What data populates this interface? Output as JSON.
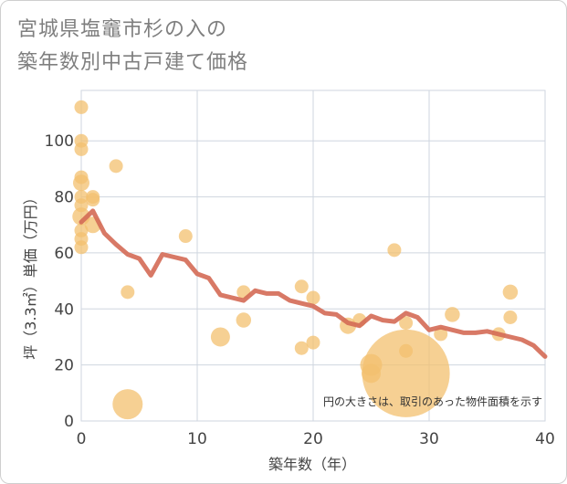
{
  "title_lines": [
    "宮城県塩竈市杉の入の",
    "築年数別中古戸建て価格"
  ],
  "chart_data": {
    "type": "scatter",
    "xlabel": "築年数（年）",
    "ylabel": "坪（3.3㎡）単価（万円）",
    "xlim": [
      0,
      40
    ],
    "ylim": [
      0,
      118
    ],
    "xticks": [
      0,
      10,
      20,
      30,
      40
    ],
    "yticks": [
      0,
      20,
      40,
      60,
      80,
      100
    ],
    "grid": true,
    "note": "円の大きさは、取引のあった物件面積を示す",
    "colors": {
      "bubble": "#f3c06f",
      "trend": "#d46a55",
      "grid": "#cfd6df"
    },
    "points": [
      {
        "x": 0,
        "y": 112,
        "size": 1
      },
      {
        "x": 0,
        "y": 100,
        "size": 1
      },
      {
        "x": 0,
        "y": 97,
        "size": 1
      },
      {
        "x": 0,
        "y": 87,
        "size": 1
      },
      {
        "x": 0,
        "y": 85,
        "size": 1.2
      },
      {
        "x": 0,
        "y": 80,
        "size": 1
      },
      {
        "x": 0,
        "y": 77,
        "size": 1
      },
      {
        "x": 0,
        "y": 73,
        "size": 1.3
      },
      {
        "x": 0,
        "y": 68,
        "size": 1
      },
      {
        "x": 0,
        "y": 65,
        "size": 1
      },
      {
        "x": 0,
        "y": 62,
        "size": 1
      },
      {
        "x": 1,
        "y": 80,
        "size": 1
      },
      {
        "x": 1,
        "y": 79,
        "size": 1
      },
      {
        "x": 1,
        "y": 70,
        "size": 1.2
      },
      {
        "x": 3,
        "y": 91,
        "size": 1
      },
      {
        "x": 4,
        "y": 46,
        "size": 1
      },
      {
        "x": 4,
        "y": 6,
        "size": 2.2
      },
      {
        "x": 9,
        "y": 66,
        "size": 1
      },
      {
        "x": 12,
        "y": 30,
        "size": 1.4
      },
      {
        "x": 14,
        "y": 46,
        "size": 1
      },
      {
        "x": 14,
        "y": 36,
        "size": 1.1
      },
      {
        "x": 19,
        "y": 48,
        "size": 1
      },
      {
        "x": 19,
        "y": 26,
        "size": 1
      },
      {
        "x": 20,
        "y": 44,
        "size": 1
      },
      {
        "x": 20,
        "y": 28,
        "size": 1
      },
      {
        "x": 23,
        "y": 34,
        "size": 1.2
      },
      {
        "x": 24,
        "y": 36,
        "size": 1
      },
      {
        "x": 25,
        "y": 20,
        "size": 1.6
      },
      {
        "x": 25,
        "y": 17,
        "size": 1.4
      },
      {
        "x": 27,
        "y": 61,
        "size": 1
      },
      {
        "x": 28,
        "y": 35,
        "size": 1
      },
      {
        "x": 28,
        "y": 25,
        "size": 1
      },
      {
        "x": 28,
        "y": 17,
        "size": 6.4
      },
      {
        "x": 31,
        "y": 31,
        "size": 1
      },
      {
        "x": 32,
        "y": 38,
        "size": 1.1
      },
      {
        "x": 36,
        "y": 31,
        "size": 1
      },
      {
        "x": 37,
        "y": 46,
        "size": 1.1
      },
      {
        "x": 37,
        "y": 37,
        "size": 1
      }
    ],
    "trend": {
      "x": [
        0,
        1,
        2,
        3,
        4,
        5,
        6,
        7,
        8,
        9,
        10,
        11,
        12,
        13,
        14,
        15,
        16,
        17,
        18,
        19,
        20,
        21,
        22,
        23,
        24,
        25,
        26,
        27,
        28,
        29,
        30,
        31,
        32,
        33,
        34,
        35,
        36,
        37,
        38,
        39,
        40
      ],
      "y": [
        71,
        75,
        67,
        63,
        59.5,
        58,
        52,
        59.5,
        58.5,
        57.5,
        52.5,
        51,
        45,
        44,
        43,
        46.5,
        45.5,
        45.5,
        43,
        42,
        41,
        38.5,
        38,
        35,
        34,
        37.5,
        36,
        35.5,
        38.5,
        37,
        32.5,
        33.5,
        32.5,
        31.5,
        31.5,
        32,
        31,
        30,
        29,
        27,
        23
      ]
    }
  }
}
